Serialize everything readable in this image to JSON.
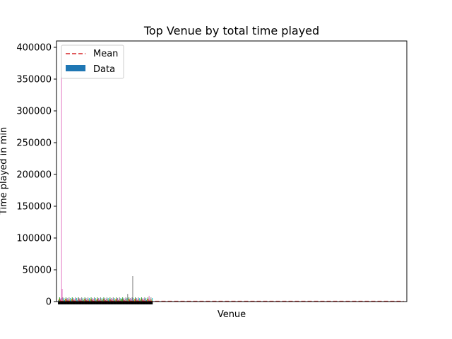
{
  "chart_data": {
    "type": "bar",
    "title": "Top Venue by total time played",
    "xlabel": "Venue",
    "ylabel": "Time played in min",
    "ylim": [
      0,
      410000
    ],
    "yticks": [
      0,
      50000,
      100000,
      150000,
      200000,
      250000,
      300000,
      350000,
      400000
    ],
    "xlim": [
      -3,
      553
    ],
    "grid": false,
    "legend": {
      "placement": "top-left",
      "entries": [
        {
          "label": "Mean",
          "style": "dashed-line",
          "color": "#d62728"
        },
        {
          "label": "Data",
          "style": "patch",
          "color": "#1f77b4"
        }
      ]
    },
    "mean": 400,
    "series": [
      {
        "values": [
          {
            "x": 5,
            "y": 365000,
            "color": "#e377c2"
          },
          {
            "x": 6,
            "y": 20000,
            "color": "#e377c2"
          },
          {
            "x": 31,
            "y": 6000,
            "color": "#e377c2"
          },
          {
            "x": 100,
            "y": 3500,
            "color": "#2ca02c"
          },
          {
            "x": 102,
            "y": 3500,
            "color": "#2ca02c"
          },
          {
            "x": 110,
            "y": 12000,
            "color": "#7f7f7f"
          },
          {
            "x": 118,
            "y": 40000,
            "color": "#7f7f7f"
          },
          {
            "x": 144,
            "y": 9000,
            "color": "#e377c2"
          }
        ]
      }
    ]
  }
}
